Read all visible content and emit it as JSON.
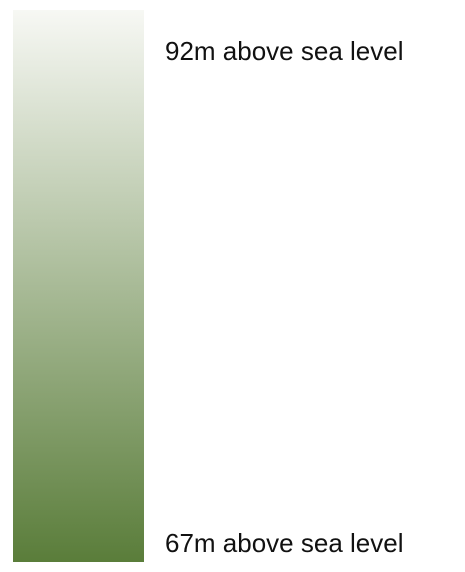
{
  "legend": {
    "max_label": "92m above sea level",
    "min_label": "67m above sea level",
    "max_value": 92,
    "min_value": 67,
    "unit": "m",
    "colors": {
      "top": "#f7f8f4",
      "bottom": "#5a7d3a"
    }
  }
}
